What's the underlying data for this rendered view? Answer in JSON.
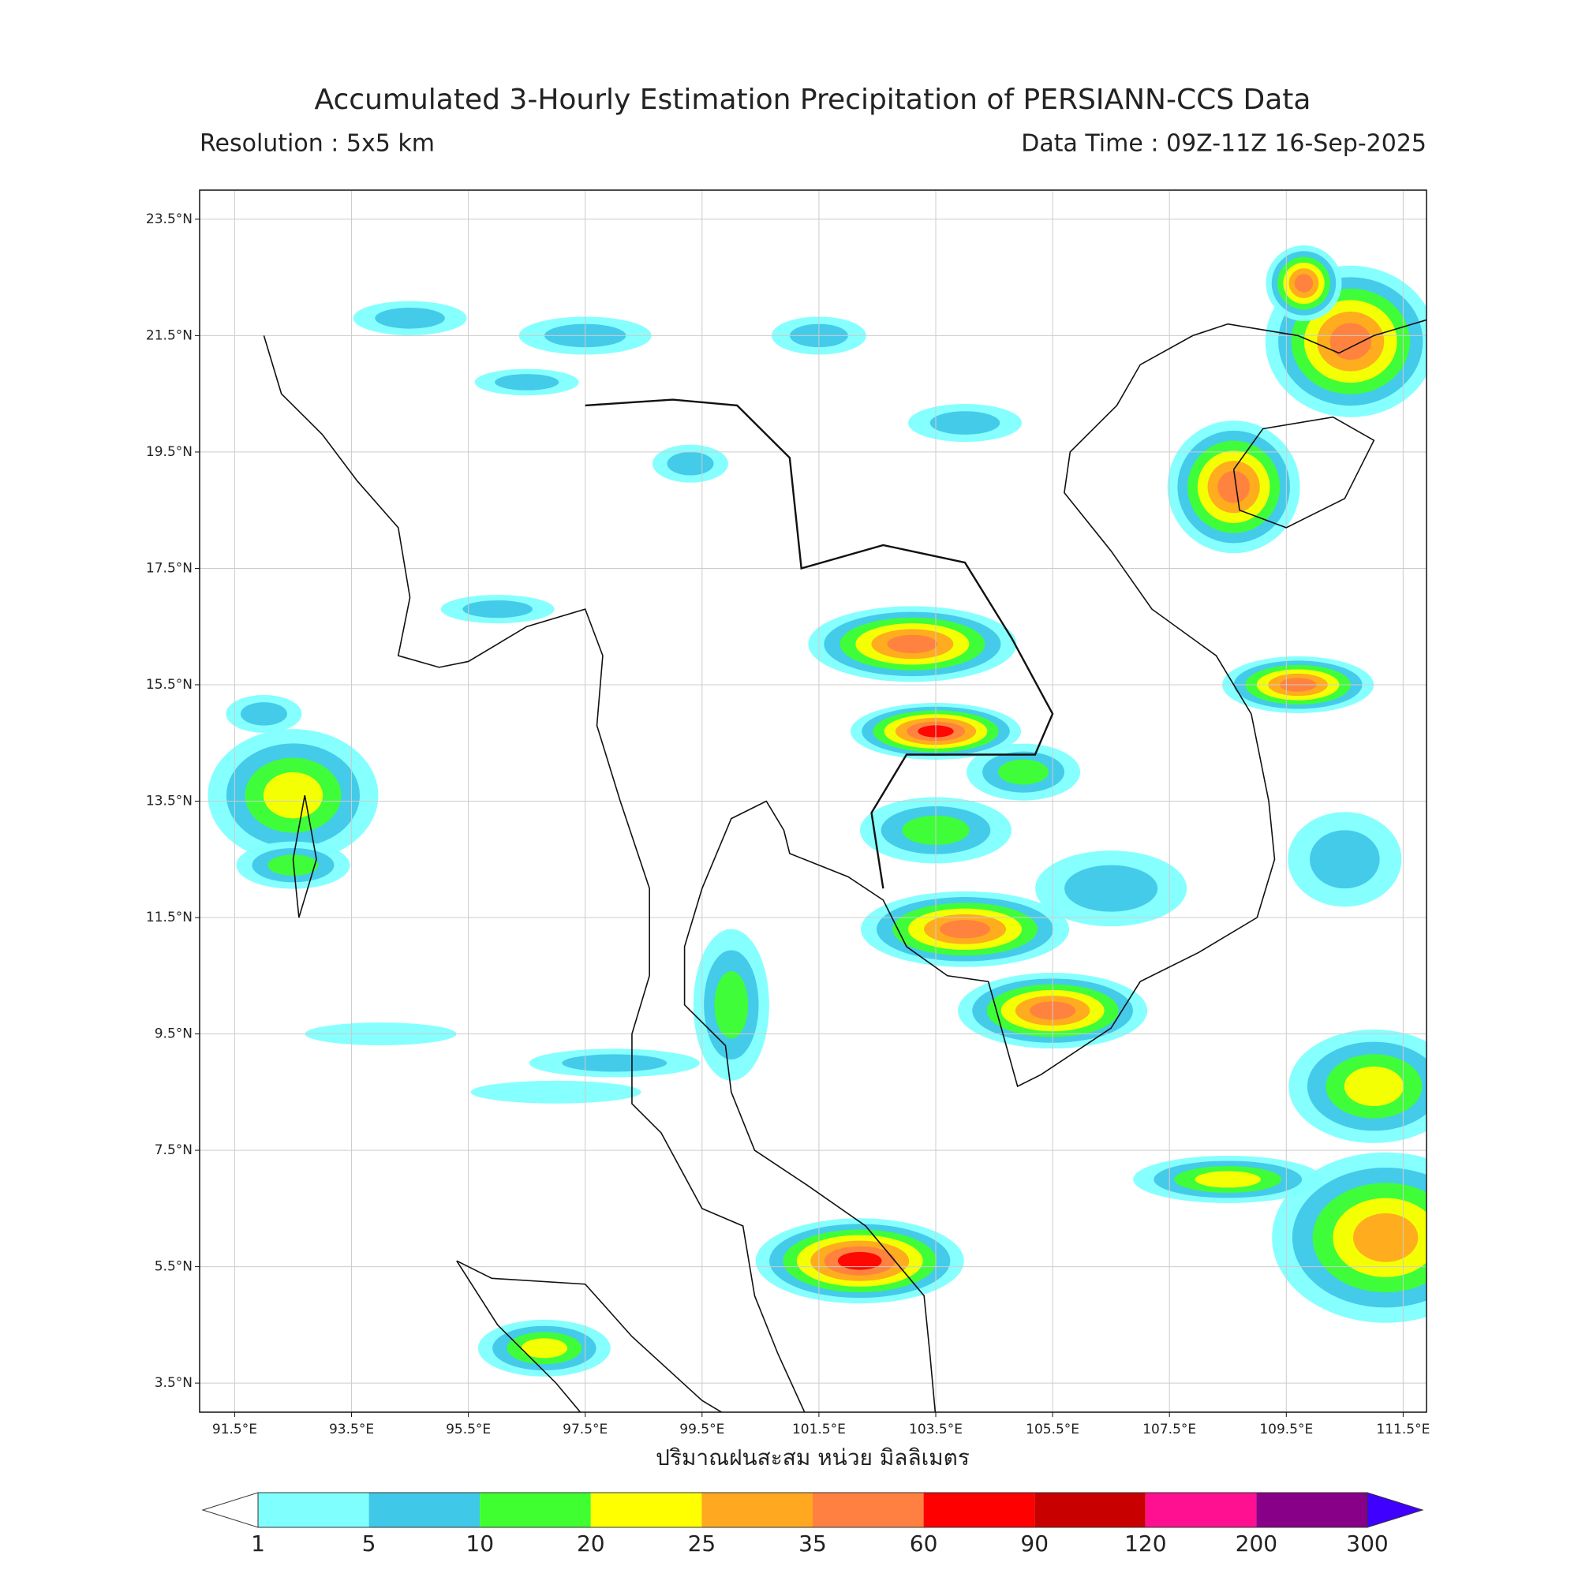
{
  "header": {
    "title": "Accumulated 3-Hourly Estimation Precipitation of PERSIANN-CCS Data",
    "resolution": "Resolution : 5x5 km",
    "data_time": "Data Time : 09Z-11Z 16-Sep-2025"
  },
  "map": {
    "xlim": [
      90.9,
      111.9
    ],
    "ylim": [
      3.0,
      24.0
    ],
    "grid": true,
    "xticks": [
      {
        "value": 91.5,
        "label": "91.5°E"
      },
      {
        "value": 93.5,
        "label": "93.5°E"
      },
      {
        "value": 95.5,
        "label": "95.5°E"
      },
      {
        "value": 97.5,
        "label": "97.5°E"
      },
      {
        "value": 99.5,
        "label": "99.5°E"
      },
      {
        "value": 101.5,
        "label": "101.5°E"
      },
      {
        "value": 103.5,
        "label": "103.5°E"
      },
      {
        "value": 105.5,
        "label": "105.5°E"
      },
      {
        "value": 107.5,
        "label": "107.5°E"
      },
      {
        "value": 109.5,
        "label": "109.5°E"
      },
      {
        "value": 111.5,
        "label": "111.5°E"
      }
    ],
    "yticks": [
      {
        "value": 3.5,
        "label": "3.5°N"
      },
      {
        "value": 5.5,
        "label": "5.5°N"
      },
      {
        "value": 7.5,
        "label": "7.5°N"
      },
      {
        "value": 9.5,
        "label": "9.5°N"
      },
      {
        "value": 11.5,
        "label": "11.5°N"
      },
      {
        "value": 13.5,
        "label": "13.5°N"
      },
      {
        "value": 15.5,
        "label": "15.5°N"
      },
      {
        "value": 17.5,
        "label": "17.5°N"
      },
      {
        "value": 19.5,
        "label": "19.5°N"
      },
      {
        "value": 21.5,
        "label": "21.5°N"
      },
      {
        "value": 23.5,
        "label": "23.5°N"
      }
    ],
    "xlabel": "ปริมาณฝนสะสม หน่วย มิลลิเมตร"
  },
  "colorbar": {
    "levels": [
      1,
      5,
      10,
      20,
      25,
      35,
      60,
      90,
      120,
      200,
      300
    ],
    "colors": [
      "#80ffff",
      "#40c8e8",
      "#40ff30",
      "#ffff00",
      "#ffa820",
      "#ff8040",
      "#ff0000",
      "#c80000",
      "#ff1090",
      "#880088"
    ],
    "under_color": "#ffffff",
    "over_color": "#4000ff"
  }
}
